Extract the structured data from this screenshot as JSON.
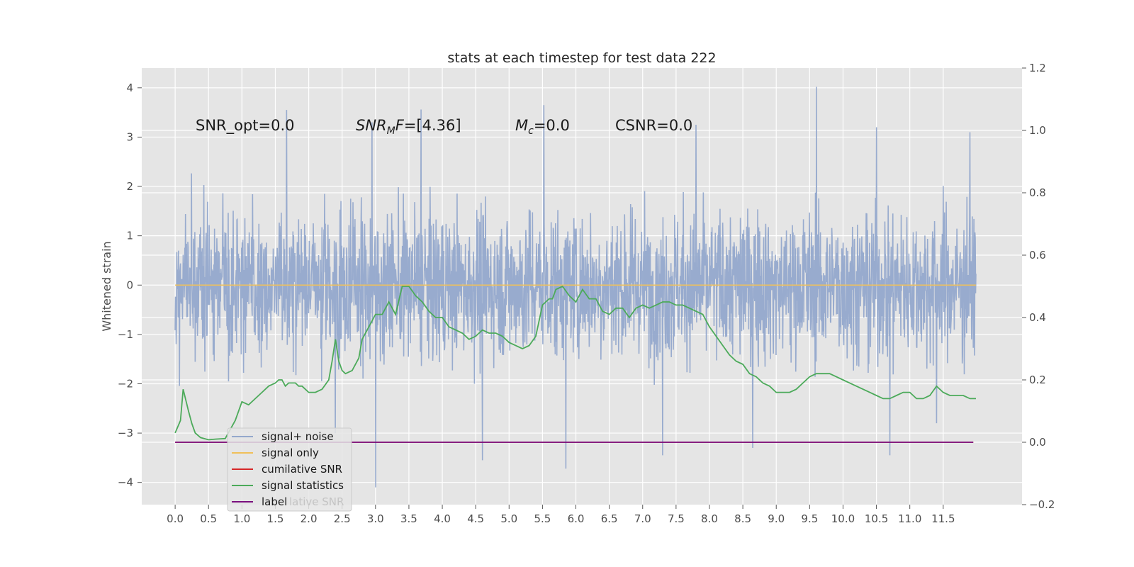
{
  "chart_data": {
    "type": "line",
    "title": "stats at each timestep for test data 222",
    "ylabel": "Whitened strain",
    "xlabel": "",
    "xlim": [
      -0.5,
      12.68
    ],
    "ylim": [
      -4.45,
      4.4
    ],
    "y2lim": [
      -0.2,
      1.2
    ],
    "grid": true,
    "legend_position": "lower-left",
    "x_ticks": [
      "0.0",
      "0.5",
      "1.0",
      "1.5",
      "2.0",
      "2.5",
      "3.0",
      "3.5",
      "4.0",
      "4.5",
      "5.0",
      "5.5",
      "6.0",
      "6.5",
      "7.0",
      "7.5",
      "8.0",
      "8.5",
      "9.0",
      "9.5",
      "10.0",
      "10.5",
      "11.0",
      "11.5"
    ],
    "y_ticks": [
      "−4",
      "−3",
      "−2",
      "−1",
      "0",
      "1",
      "2",
      "3",
      "4"
    ],
    "y2_ticks": [
      "−0.2",
      "0.0",
      "0.2",
      "0.4",
      "0.6",
      "0.8",
      "1.0",
      "1.2"
    ],
    "annotations": [
      {
        "id": "snr_opt",
        "text": "SNR_opt=0.0"
      },
      {
        "id": "snr_mf",
        "text": "=[4.36]",
        "math_main": "SNR",
        "math_sub": "M",
        "math_after": "F"
      },
      {
        "id": "mc",
        "text": "=0.0",
        "math_main": "M",
        "math_sub": "c"
      },
      {
        "id": "csnr",
        "text": "CSNR=0.0"
      }
    ],
    "series": [
      {
        "name": "signal+ noise",
        "axis": "left",
        "color": "#94a8cc",
        "x_range": [
          0.0,
          11.99
        ],
        "envelope_typical": [
          -2.4,
          2.4
        ],
        "peaks": [
          {
            "x": 1.67,
            "y": 3.55
          },
          {
            "x": 3.68,
            "y": 3.56
          },
          {
            "x": 5.52,
            "y": 3.65
          },
          {
            "x": 9.6,
            "y": 4.02
          },
          {
            "x": 2.95,
            "y": 3.3
          },
          {
            "x": 11.9,
            "y": 3.1
          },
          {
            "x": 7.8,
            "y": 3.25
          },
          {
            "x": 10.5,
            "y": 3.2
          }
        ],
        "troughs": [
          {
            "x": 3.0,
            "y": -4.1
          },
          {
            "x": 5.85,
            "y": -3.72
          },
          {
            "x": 4.6,
            "y": -3.55
          },
          {
            "x": 10.7,
            "y": -3.45
          },
          {
            "x": 7.3,
            "y": -3.45
          },
          {
            "x": 8.65,
            "y": -3.3
          },
          {
            "x": 2.4,
            "y": -3.0
          },
          {
            "x": 11.4,
            "y": -2.8
          }
        ]
      },
      {
        "name": "signal only",
        "axis": "left",
        "color": "#f0c05a",
        "x": [
          0.0,
          11.99
        ],
        "y": [
          0.0,
          0.0
        ]
      },
      {
        "name": "cumilative SNR",
        "axis": "right",
        "color": "#d62728",
        "x": [
          0.0,
          11.95
        ],
        "y": [
          0.0,
          0.0
        ]
      },
      {
        "name": "signal statistics",
        "axis": "right",
        "color": "#4caa5a",
        "x": [
          0.0,
          0.08,
          0.12,
          0.2,
          0.25,
          0.3,
          0.38,
          0.5,
          0.6,
          0.75,
          0.9,
          1.0,
          1.1,
          1.2,
          1.3,
          1.4,
          1.5,
          1.55,
          1.6,
          1.65,
          1.7,
          1.75,
          1.8,
          1.85,
          1.9,
          2.0,
          2.1,
          2.2,
          2.3,
          2.35,
          2.4,
          2.45,
          2.5,
          2.55,
          2.65,
          2.75,
          2.8,
          2.9,
          3.0,
          3.1,
          3.2,
          3.3,
          3.4,
          3.5,
          3.6,
          3.7,
          3.8,
          3.9,
          4.0,
          4.1,
          4.2,
          4.3,
          4.4,
          4.5,
          4.6,
          4.7,
          4.8,
          4.9,
          5.0,
          5.1,
          5.2,
          5.3,
          5.4,
          5.5,
          5.6,
          5.65,
          5.7,
          5.8,
          5.9,
          6.0,
          6.1,
          6.2,
          6.3,
          6.4,
          6.5,
          6.6,
          6.7,
          6.8,
          6.9,
          7.0,
          7.1,
          7.2,
          7.3,
          7.4,
          7.5,
          7.6,
          7.7,
          7.8,
          7.9,
          8.0,
          8.1,
          8.2,
          8.3,
          8.4,
          8.5,
          8.6,
          8.7,
          8.8,
          8.9,
          9.0,
          9.1,
          9.2,
          9.3,
          9.4,
          9.5,
          9.6,
          9.7,
          9.8,
          9.9,
          10.0,
          10.1,
          10.2,
          10.3,
          10.4,
          10.5,
          10.6,
          10.7,
          10.8,
          10.9,
          11.0,
          11.1,
          11.2,
          11.3,
          11.4,
          11.5,
          11.6,
          11.7,
          11.8,
          11.9,
          11.99
        ],
        "y": [
          0.03,
          0.07,
          0.17,
          0.1,
          0.06,
          0.03,
          0.015,
          0.008,
          0.01,
          0.012,
          0.07,
          0.13,
          0.12,
          0.14,
          0.16,
          0.18,
          0.19,
          0.2,
          0.2,
          0.18,
          0.19,
          0.19,
          0.19,
          0.18,
          0.18,
          0.16,
          0.16,
          0.17,
          0.2,
          0.26,
          0.33,
          0.26,
          0.23,
          0.22,
          0.23,
          0.27,
          0.33,
          0.37,
          0.41,
          0.41,
          0.45,
          0.41,
          0.5,
          0.5,
          0.47,
          0.45,
          0.42,
          0.4,
          0.4,
          0.37,
          0.36,
          0.35,
          0.33,
          0.34,
          0.36,
          0.35,
          0.35,
          0.34,
          0.32,
          0.31,
          0.3,
          0.31,
          0.34,
          0.44,
          0.46,
          0.46,
          0.49,
          0.5,
          0.47,
          0.45,
          0.49,
          0.46,
          0.46,
          0.42,
          0.41,
          0.43,
          0.43,
          0.4,
          0.43,
          0.44,
          0.43,
          0.44,
          0.45,
          0.45,
          0.44,
          0.44,
          0.43,
          0.42,
          0.41,
          0.37,
          0.34,
          0.31,
          0.28,
          0.26,
          0.25,
          0.22,
          0.21,
          0.19,
          0.18,
          0.16,
          0.16,
          0.16,
          0.17,
          0.19,
          0.21,
          0.22,
          0.22,
          0.22,
          0.21,
          0.2,
          0.19,
          0.18,
          0.17,
          0.16,
          0.15,
          0.14,
          0.14,
          0.15,
          0.16,
          0.16,
          0.14,
          0.14,
          0.15,
          0.18,
          0.16,
          0.15,
          0.15,
          0.15,
          0.14,
          0.14
        ]
      },
      {
        "name": "label",
        "axis": "right",
        "color": "#7a0f7e",
        "x": [
          0.0,
          11.95
        ],
        "y": [
          0.0,
          0.0
        ]
      }
    ],
    "legend_partial_text": "lative SNR"
  }
}
